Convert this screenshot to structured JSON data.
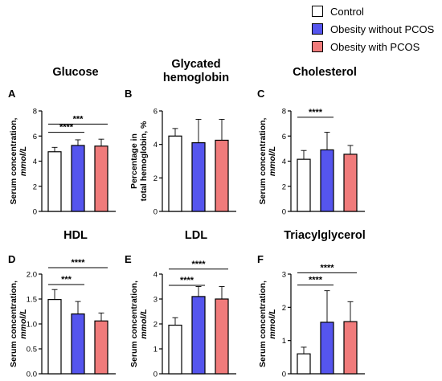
{
  "legend": {
    "items": [
      {
        "label": "Control",
        "color": "#ffffff"
      },
      {
        "label": "Obesity without PCOS",
        "color": "#5555ee"
      },
      {
        "label": "Obesity with PCOS",
        "color": "#f07b7b"
      }
    ]
  },
  "chart_data": [
    {
      "type": "bar",
      "letter": "A",
      "title": "Glucose",
      "ylabel": "Serum concentration,",
      "ylabel_unit": "mmol/L",
      "categories": [
        "Control",
        "Obesity without PCOS",
        "Obesity with PCOS"
      ],
      "values": [
        4.75,
        5.25,
        5.2
      ],
      "errors": [
        0.35,
        0.45,
        0.55
      ],
      "ylim": [
        0,
        8
      ],
      "yticks": [
        "0",
        "2",
        "4",
        "6",
        "8"
      ],
      "significance": [
        {
          "from": 0,
          "to": 2,
          "label": "***",
          "y": 6.95
        },
        {
          "from": 0,
          "to": 1,
          "label": "****",
          "y": 6.3
        }
      ]
    },
    {
      "type": "bar",
      "letter": "B",
      "title": "Glycated hemoglobin",
      "ylabel": "Percentage in",
      "ylabel_line2": "total hemoglobin, %",
      "categories": [
        "Control",
        "Obesity without PCOS",
        "Obesity with PCOS"
      ],
      "values": [
        4.5,
        4.1,
        4.25
      ],
      "errors": [
        0.45,
        1.4,
        1.25
      ],
      "ylim": [
        0,
        6
      ],
      "yticks": [
        "0",
        "2",
        "4",
        "6"
      ],
      "significance": []
    },
    {
      "type": "bar",
      "letter": "C",
      "title": "Cholesterol",
      "ylabel": "Serum concentration,",
      "ylabel_unit": "mmol/L",
      "categories": [
        "Control",
        "Obesity without PCOS",
        "Obesity with PCOS"
      ],
      "values": [
        4.15,
        4.9,
        4.55
      ],
      "errors": [
        0.7,
        1.4,
        0.7
      ],
      "ylim": [
        0,
        8
      ],
      "yticks": [
        "0",
        "2",
        "4",
        "6",
        "8"
      ],
      "significance": [
        {
          "from": 0,
          "to": 1,
          "label": "****",
          "y": 7.5
        }
      ]
    },
    {
      "type": "bar",
      "letter": "D",
      "title": "HDL",
      "ylabel": "Serum concentration,",
      "ylabel_unit": "mmol/L",
      "categories": [
        "Control",
        "Obesity without PCOS",
        "Obesity with PCOS"
      ],
      "values": [
        1.49,
        1.2,
        1.06
      ],
      "errors": [
        0.2,
        0.25,
        0.16
      ],
      "ylim": [
        0,
        2.0
      ],
      "yticks": [
        "0.0",
        "0.5",
        "1.0",
        "1.5",
        "2.0"
      ],
      "significance": [
        {
          "from": 0,
          "to": 2,
          "label": "****",
          "y": 2.13
        },
        {
          "from": 0,
          "to": 1,
          "label": "***",
          "y": 1.79
        }
      ]
    },
    {
      "type": "bar",
      "letter": "E",
      "title": "LDL",
      "ylabel": "Serum concentration,",
      "ylabel_unit": "mmol/L",
      "categories": [
        "Control",
        "Obesity without PCOS",
        "Obesity with PCOS"
      ],
      "values": [
        1.95,
        3.1,
        3.0
      ],
      "errors": [
        0.3,
        0.4,
        0.5
      ],
      "ylim": [
        0,
        4
      ],
      "yticks": [
        "0",
        "1",
        "2",
        "3",
        "4"
      ],
      "significance": [
        {
          "from": 0,
          "to": 2,
          "label": "****",
          "y": 4.2
        },
        {
          "from": 0,
          "to": 1,
          "label": "****",
          "y": 3.55
        }
      ]
    },
    {
      "type": "bar",
      "letter": "F",
      "title": "Triacylglycerol",
      "ylabel": "Serum concentration,",
      "ylabel_unit": "mmol/L",
      "categories": [
        "Control",
        "Obesity without PCOS",
        "Obesity with PCOS"
      ],
      "values": [
        0.6,
        1.55,
        1.57
      ],
      "errors": [
        0.2,
        0.95,
        0.6
      ],
      "ylim": [
        0,
        3
      ],
      "yticks": [
        "0",
        "1",
        "2",
        "3"
      ],
      "significance": [
        {
          "from": 0,
          "to": 2,
          "label": "****",
          "y": 3.04
        },
        {
          "from": 0,
          "to": 1,
          "label": "****",
          "y": 2.67
        }
      ]
    }
  ]
}
